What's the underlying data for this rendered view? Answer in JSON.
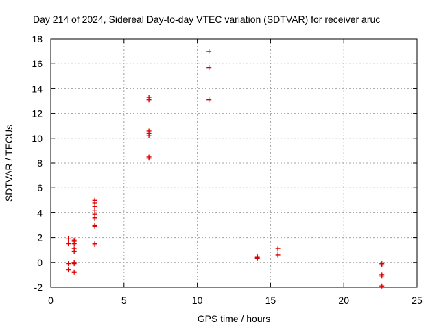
{
  "chart_data": {
    "type": "scatter",
    "title": "Day 214 of 2024, Sidereal Day-to-day VTEC variation (SDTVAR) for receiver aruc",
    "xlabel": "GPS time / hours",
    "ylabel": "SDTVAR / TECUs",
    "xlim": [
      0,
      25
    ],
    "ylim": [
      -2,
      18
    ],
    "xticks": [
      0,
      5,
      10,
      15,
      20,
      25
    ],
    "yticks": [
      -2,
      0,
      2,
      4,
      6,
      8,
      10,
      12,
      14,
      16,
      18
    ],
    "grid": true,
    "marker": "+",
    "color": "#dd0000",
    "series": [
      {
        "name": "SDTVAR",
        "points": [
          [
            1.2,
            1.9
          ],
          [
            1.2,
            1.5
          ],
          [
            1.2,
            -0.1
          ],
          [
            1.2,
            -0.6
          ],
          [
            1.6,
            1.8
          ],
          [
            1.6,
            1.7
          ],
          [
            1.6,
            1.5
          ],
          [
            1.6,
            1.1
          ],
          [
            1.6,
            0.9
          ],
          [
            1.6,
            0.0
          ],
          [
            1.6,
            -0.1
          ],
          [
            1.6,
            -0.8
          ],
          [
            3.0,
            5.0
          ],
          [
            3.0,
            4.8
          ],
          [
            3.0,
            4.5
          ],
          [
            3.0,
            4.2
          ],
          [
            3.0,
            3.9
          ],
          [
            3.0,
            3.6
          ],
          [
            3.0,
            3.5
          ],
          [
            3.0,
            3.0
          ],
          [
            3.0,
            2.9
          ],
          [
            3.0,
            1.5
          ],
          [
            3.0,
            1.4
          ],
          [
            6.7,
            13.3
          ],
          [
            6.7,
            13.1
          ],
          [
            6.7,
            10.6
          ],
          [
            6.7,
            10.4
          ],
          [
            6.7,
            10.2
          ],
          [
            6.7,
            8.5
          ],
          [
            6.7,
            8.4
          ],
          [
            10.8,
            17.0
          ],
          [
            10.8,
            15.7
          ],
          [
            10.8,
            13.1
          ],
          [
            14.1,
            0.5
          ],
          [
            14.1,
            0.4
          ],
          [
            14.1,
            0.3
          ],
          [
            15.5,
            1.1
          ],
          [
            15.5,
            0.6
          ],
          [
            22.6,
            -0.1
          ],
          [
            22.6,
            -0.2
          ],
          [
            22.6,
            -1.0
          ],
          [
            22.6,
            -1.1
          ],
          [
            22.6,
            -1.9
          ]
        ]
      }
    ]
  }
}
